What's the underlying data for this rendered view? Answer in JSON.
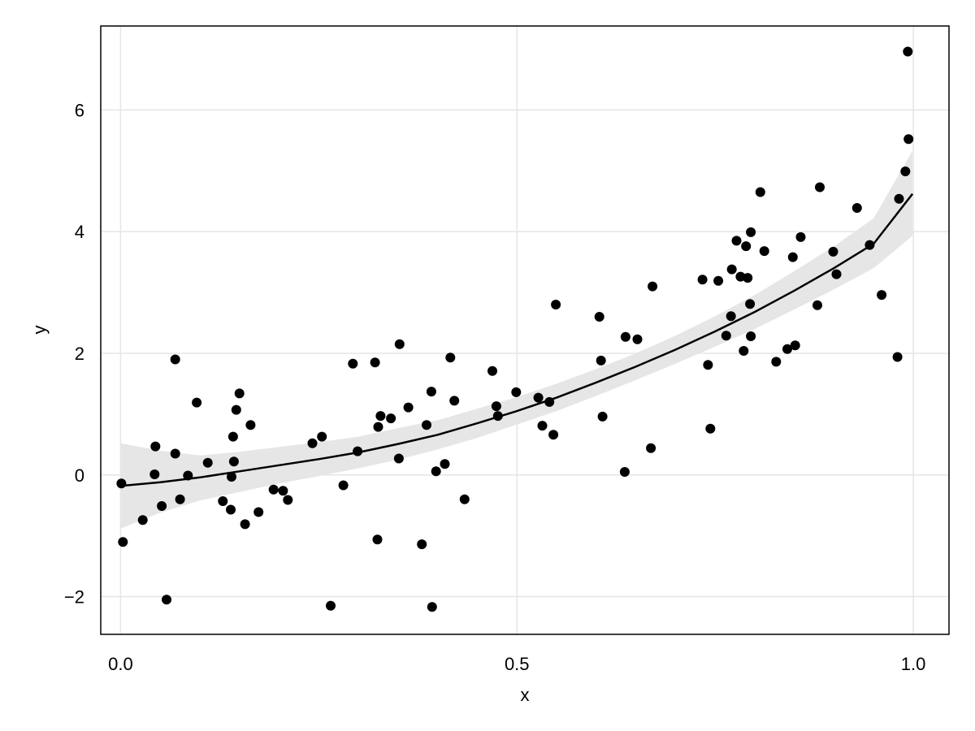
{
  "chart_data": {
    "type": "scatter",
    "xlabel": "x",
    "ylabel": "y",
    "xlim": [
      -0.025,
      1.045
    ],
    "ylim": [
      -2.62,
      7.38
    ],
    "xticks": [
      0.0,
      0.5,
      1.0
    ],
    "xtick_labels": [
      "0.0",
      "0.5",
      "1.0"
    ],
    "yticks": [
      -2,
      0,
      2,
      4,
      6
    ],
    "ytick_labels": [
      "−2",
      "0",
      "2",
      "4",
      "6"
    ],
    "grid": true,
    "colors": {
      "points": "#000000",
      "fit_line": "#000000",
      "band": "#e6e6e6",
      "grid": "#e5e5e5",
      "frame": "#000000"
    },
    "series": [
      {
        "type": "scatter",
        "points": [
          [
            0.001,
            -0.14
          ],
          [
            0.003,
            -1.1
          ],
          [
            0.028,
            -0.74
          ],
          [
            0.043,
            0.01
          ],
          [
            0.044,
            0.47
          ],
          [
            0.052,
            -0.51
          ],
          [
            0.058,
            -2.05
          ],
          [
            0.069,
            1.9
          ],
          [
            0.069,
            0.35
          ],
          [
            0.075,
            -0.4
          ],
          [
            0.085,
            -0.01
          ],
          [
            0.096,
            1.19
          ],
          [
            0.11,
            0.2
          ],
          [
            0.129,
            -0.43
          ],
          [
            0.139,
            -0.57
          ],
          [
            0.14,
            -0.03
          ],
          [
            0.142,
            0.63
          ],
          [
            0.143,
            0.22
          ],
          [
            0.146,
            1.07
          ],
          [
            0.15,
            1.34
          ],
          [
            0.157,
            -0.81
          ],
          [
            0.164,
            0.82
          ],
          [
            0.174,
            -0.61
          ],
          [
            0.193,
            -0.24
          ],
          [
            0.205,
            -0.26
          ],
          [
            0.211,
            -0.41
          ],
          [
            0.242,
            0.52
          ],
          [
            0.254,
            0.63
          ],
          [
            0.265,
            -2.15
          ],
          [
            0.281,
            -0.17
          ],
          [
            0.293,
            1.83
          ],
          [
            0.299,
            0.39
          ],
          [
            0.321,
            1.85
          ],
          [
            0.324,
            -1.06
          ],
          [
            0.325,
            0.79
          ],
          [
            0.328,
            0.97
          ],
          [
            0.341,
            0.93
          ],
          [
            0.351,
            0.27
          ],
          [
            0.352,
            2.15
          ],
          [
            0.363,
            1.11
          ],
          [
            0.38,
            -1.14
          ],
          [
            0.386,
            0.82
          ],
          [
            0.392,
            1.37
          ],
          [
            0.393,
            -2.17
          ],
          [
            0.398,
            0.06
          ],
          [
            0.409,
            0.18
          ],
          [
            0.416,
            1.93
          ],
          [
            0.421,
            1.22
          ],
          [
            0.434,
            -0.4
          ],
          [
            0.469,
            1.71
          ],
          [
            0.474,
            1.13
          ],
          [
            0.476,
            0.97
          ],
          [
            0.499,
            1.36
          ],
          [
            0.527,
            1.27
          ],
          [
            0.532,
            0.81
          ],
          [
            0.541,
            1.2
          ],
          [
            0.546,
            0.66
          ],
          [
            0.549,
            2.8
          ],
          [
            0.604,
            2.6
          ],
          [
            0.606,
            1.88
          ],
          [
            0.608,
            0.96
          ],
          [
            0.636,
            0.05
          ],
          [
            0.637,
            2.27
          ],
          [
            0.652,
            2.23
          ],
          [
            0.669,
            0.44
          ],
          [
            0.671,
            3.1
          ],
          [
            0.734,
            3.21
          ],
          [
            0.741,
            1.81
          ],
          [
            0.744,
            0.76
          ],
          [
            0.754,
            3.19
          ],
          [
            0.764,
            2.29
          ],
          [
            0.77,
            2.61
          ],
          [
            0.771,
            3.38
          ],
          [
            0.777,
            3.85
          ],
          [
            0.782,
            3.26
          ],
          [
            0.786,
            2.04
          ],
          [
            0.789,
            3.76
          ],
          [
            0.791,
            3.24
          ],
          [
            0.794,
            2.81
          ],
          [
            0.795,
            3.99
          ],
          [
            0.795,
            2.28
          ],
          [
            0.807,
            4.65
          ],
          [
            0.812,
            3.68
          ],
          [
            0.827,
            1.86
          ],
          [
            0.841,
            2.07
          ],
          [
            0.848,
            3.58
          ],
          [
            0.851,
            2.13
          ],
          [
            0.858,
            3.91
          ],
          [
            0.879,
            2.79
          ],
          [
            0.882,
            4.73
          ],
          [
            0.899,
            3.67
          ],
          [
            0.903,
            3.3
          ],
          [
            0.929,
            4.39
          ],
          [
            0.945,
            3.78
          ],
          [
            0.96,
            2.96
          ],
          [
            0.98,
            1.94
          ],
          [
            0.982,
            4.54
          ],
          [
            0.99,
            4.99
          ],
          [
            0.993,
            6.96
          ],
          [
            0.994,
            5.52
          ]
        ]
      },
      {
        "type": "line",
        "x": [
          0.0,
          0.05,
          0.1,
          0.15,
          0.2,
          0.25,
          0.3,
          0.35,
          0.4,
          0.45,
          0.5,
          0.55,
          0.6,
          0.65,
          0.7,
          0.75,
          0.8,
          0.85,
          0.9,
          0.95,
          0.999
        ],
        "y": [
          -0.18,
          -0.12,
          -0.04,
          0.06,
          0.16,
          0.26,
          0.37,
          0.51,
          0.66,
          0.85,
          1.05,
          1.27,
          1.52,
          1.78,
          2.06,
          2.36,
          2.68,
          3.03,
          3.4,
          3.8,
          4.62
        ],
        "band_lower": [
          -0.88,
          -0.62,
          -0.42,
          -0.28,
          -0.14,
          -0.02,
          0.11,
          0.25,
          0.42,
          0.61,
          0.83,
          1.05,
          1.3,
          1.56,
          1.83,
          2.11,
          2.4,
          2.72,
          3.05,
          3.4,
          3.93
        ],
        "band_upper": [
          0.52,
          0.4,
          0.32,
          0.38,
          0.46,
          0.54,
          0.63,
          0.77,
          0.9,
          1.09,
          1.28,
          1.5,
          1.74,
          2.0,
          2.29,
          2.61,
          2.96,
          3.35,
          3.76,
          4.22,
          5.33
        ]
      }
    ]
  }
}
